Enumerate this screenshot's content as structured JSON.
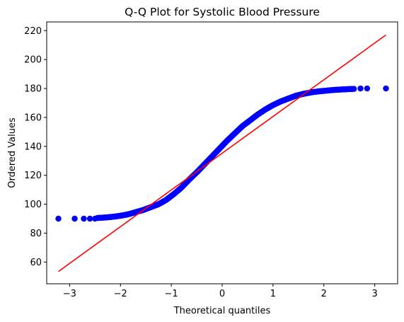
{
  "chart_data": {
    "type": "scatter",
    "title": "Q-Q Plot for Systolic Blood Pressure",
    "xlabel": "Theoretical quantiles",
    "ylabel": "Ordered Values",
    "xlim": [
      -3.45,
      3.45
    ],
    "ylim": [
      45,
      226
    ],
    "xticks": [
      -3,
      -2,
      -1,
      0,
      1,
      2,
      3
    ],
    "yticks": [
      60,
      80,
      100,
      120,
      140,
      160,
      180,
      200,
      220
    ],
    "grid": false,
    "legend": "none",
    "colors": {
      "points": "#0000ff",
      "line": "#ff0000"
    },
    "series": [
      {
        "kind": "points",
        "curve": {
          "x": [
            -3.22,
            -2.9,
            -2.72,
            -2.6,
            -2.45,
            -2.3,
            -2.15,
            -2.0,
            -1.85,
            -1.7,
            -1.55,
            -1.4,
            -1.25,
            -1.1,
            -0.95,
            -0.8,
            -0.65,
            -0.5,
            -0.35,
            -0.2,
            -0.05,
            0.1,
            0.25,
            0.4,
            0.55,
            0.7,
            0.85,
            1.0,
            1.15,
            1.3,
            1.45,
            1.6,
            1.75,
            1.9,
            2.05,
            2.2,
            2.35,
            2.5,
            2.65,
            2.85,
            3.22
          ],
          "y": [
            90,
            90,
            90,
            90,
            90.5,
            90.8,
            91.3,
            92,
            93,
            94.5,
            96,
            98,
            100,
            103,
            107,
            111.5,
            117,
            122,
            127.5,
            133,
            138.5,
            144,
            149,
            154,
            158,
            162,
            165.5,
            168.5,
            171,
            173,
            175,
            176.3,
            177.3,
            178,
            178.5,
            179,
            179.3,
            179.6,
            179.8,
            180,
            180
          ]
        },
        "sparse_markers": {
          "x": [
            -3.22,
            -2.9,
            -2.72,
            -2.6,
            -2.5,
            2.72,
            2.85,
            3.22
          ],
          "y": [
            90,
            90,
            90,
            90,
            90,
            180,
            180,
            180
          ]
        }
      },
      {
        "kind": "fit-line",
        "x": [
          -3.22,
          3.22
        ],
        "y": [
          53.5,
          217
        ]
      }
    ]
  }
}
